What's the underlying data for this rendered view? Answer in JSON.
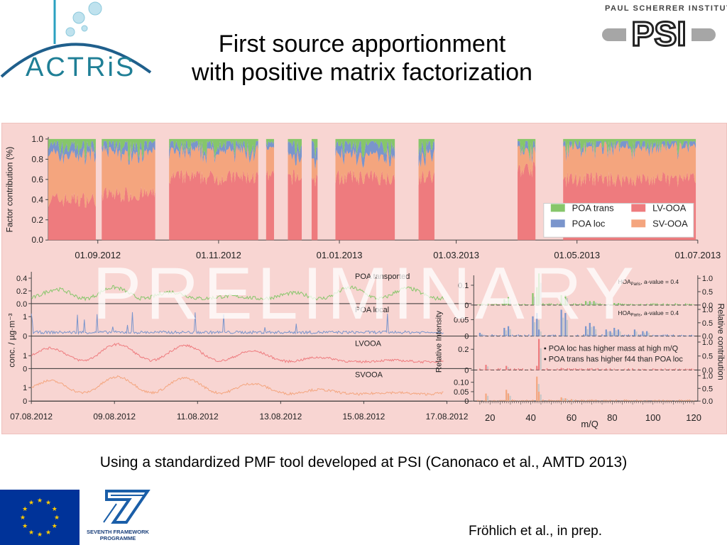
{
  "title": {
    "line1": "First source apportionment",
    "line2": "with positive matrix factorization"
  },
  "logos": {
    "actris": "ACTRiS",
    "psi_name": "PAUL SCHERRER INSTITUT",
    "psi_mark": "PSI",
    "fp7_label": "SEVENTH FRAMEWORK PROGRAMME",
    "eu_flag": "eu-flag-icon"
  },
  "watermark": "PRELIMINARY",
  "caption": "Using a standardized PMF tool developed at PSI (Canonaco et al., AMTD 2013)",
  "citation": "Fröhlich et al., in prep.",
  "colors": {
    "poa_trans": "#86c66a",
    "poa_loc": "#7a95cc",
    "lv_ooa": "#ee7b7e",
    "sv_ooa": "#f4a57e",
    "panel_bg": "#f8d5d2"
  },
  "chart_data": [
    {
      "type": "area",
      "ylabel": "Factor contribution (%)",
      "ylim": [
        0,
        1
      ],
      "yticks": [
        "0.0",
        "0.2",
        "0.4",
        "0.6",
        "0.8",
        "1.0"
      ],
      "x_ticks": [
        "01.09.2012",
        "01.11.2012",
        "01.01.2013",
        "01.03.2013",
        "01.05.2013",
        "01.07.2013"
      ],
      "legend_placement": "bottom-right",
      "legend": [
        "POA trans",
        "POA loc",
        "LV-OOA",
        "SV-OOA"
      ],
      "series_order": [
        "LV-OOA",
        "SV-OOA",
        "POA loc",
        "POA trans"
      ],
      "blocks": [
        {
          "from": "2012-08-07",
          "to": "2012-08-31",
          "lv": 0.4,
          "sv": 0.45,
          "loc": 0.08,
          "trans": 0.07
        },
        {
          "from": "2012-09-03",
          "to": "2012-09-30",
          "lv": 0.45,
          "sv": 0.42,
          "loc": 0.07,
          "trans": 0.06
        },
        {
          "from": "2012-10-07",
          "to": "2012-11-21",
          "lv": 0.62,
          "sv": 0.26,
          "loc": 0.06,
          "trans": 0.06
        },
        {
          "from": "2012-11-25",
          "to": "2012-11-29",
          "lv": 0.62,
          "sv": 0.26,
          "loc": 0.06,
          "trans": 0.06
        },
        {
          "from": "2012-12-06",
          "to": "2012-12-13",
          "lv": 0.62,
          "sv": 0.2,
          "loc": 0.12,
          "trans": 0.06
        },
        {
          "from": "2012-12-18",
          "to": "2012-12-21",
          "lv": 0.6,
          "sv": 0.2,
          "loc": 0.14,
          "trans": 0.06
        },
        {
          "from": "2012-12-30",
          "to": "2013-01-29",
          "lv": 0.62,
          "sv": 0.22,
          "loc": 0.1,
          "trans": 0.06
        },
        {
          "from": "2013-02-10",
          "to": "2013-02-18",
          "lv": 0.62,
          "sv": 0.22,
          "loc": 0.1,
          "trans": 0.06
        },
        {
          "from": "2013-04-01",
          "to": "2013-04-10",
          "lv": 0.7,
          "sv": 0.2,
          "loc": 0.05,
          "trans": 0.05
        },
        {
          "from": "2013-04-24",
          "to": "2013-06-30",
          "lv": 0.6,
          "sv": 0.32,
          "loc": 0.04,
          "trans": 0.04
        }
      ]
    },
    {
      "type": "line",
      "ylabel": "conc. / µg·m⁻³",
      "x_ticks": [
        "07.08.2012",
        "09.08.2012",
        "11.08.2012",
        "13.08.2012",
        "15.08.2012",
        "17.08.2012"
      ],
      "series": [
        {
          "name": "POA tansported",
          "color": "#86c66a",
          "ylim": [
            0,
            0.5
          ],
          "yticks": [
            "0.0",
            "0.2",
            "0.4"
          ],
          "shape": "waves",
          "base": 0.08,
          "amp": 0.18
        },
        {
          "name": "POA local",
          "color": "#7a95cc",
          "ylim": [
            0,
            1.6
          ],
          "yticks": [
            "0",
            "1"
          ],
          "shape": "spikes",
          "base": 0.12,
          "amp": 1.2
        },
        {
          "name": "LVOOA",
          "color": "#ee7b7e",
          "ylim": [
            0,
            2.3
          ],
          "yticks": [
            "0",
            "1"
          ],
          "shape": "hump",
          "base": 0.5,
          "amp": 1.4
        },
        {
          "name": "SVOOA",
          "color": "#f4a57e",
          "ylim": [
            0,
            2.3
          ],
          "yticks": [
            "0",
            "1"
          ],
          "shape": "hump",
          "base": 0.5,
          "amp": 1.3
        }
      ]
    },
    {
      "type": "bar",
      "ylabel": "Relative Intensity",
      "y2label": "Relative contribution",
      "xlabel": "m/Q",
      "xlim": [
        12,
        122
      ],
      "x_ticks": [
        20,
        40,
        60,
        80,
        100,
        120
      ],
      "right_ticks": [
        "0.0",
        "0.5",
        "1.0"
      ],
      "panels": [
        {
          "color": "#86c66a",
          "ylim": [
            0,
            0.15
          ],
          "yticks": [
            "0",
            "0.1"
          ],
          "label": "HOA",
          "label_sub": "Paris",
          "label_tail": ", a-value = 0.4",
          "peaks": [
            [
              27,
              0.03
            ],
            [
              29,
              0.04
            ],
            [
              41,
              0.06
            ],
            [
              43,
              0.09
            ],
            [
              44,
              0.16
            ],
            [
              55,
              0.05
            ],
            [
              57,
              0.05
            ],
            [
              67,
              0.02
            ],
            [
              69,
              0.02
            ],
            [
              71,
              0.02
            ],
            [
              81,
              0.01
            ],
            [
              83,
              0.01
            ]
          ]
        },
        {
          "color": "#7a95cc",
          "ylim": [
            0,
            0.09
          ],
          "yticks": [
            "0",
            "0.05"
          ],
          "label": "HOA",
          "label_sub": "Paris",
          "label_tail": ", a-value = 0.4",
          "peaks": [
            [
              15,
              0.01
            ],
            [
              27,
              0.025
            ],
            [
              29,
              0.03
            ],
            [
              41,
              0.06
            ],
            [
              43,
              0.07
            ],
            [
              44,
              0.02
            ],
            [
              55,
              0.08
            ],
            [
              57,
              0.07
            ],
            [
              67,
              0.03
            ],
            [
              69,
              0.04
            ],
            [
              71,
              0.03
            ],
            [
              77,
              0.02
            ],
            [
              79,
              0.015
            ],
            [
              81,
              0.025
            ],
            [
              83,
              0.02
            ],
            [
              91,
              0.02
            ],
            [
              95,
              0.015
            ],
            [
              97,
              0.015
            ]
          ]
        },
        {
          "color": "#ee7b7e",
          "ylim": [
            0,
            0.3
          ],
          "yticks": [
            "0",
            "0.2"
          ],
          "label": "",
          "peaks": [
            [
              18,
              0.05
            ],
            [
              28,
              0.04
            ],
            [
              44,
              0.3
            ],
            [
              43,
              0.04
            ],
            [
              55,
              0.02
            ],
            [
              60,
              0.01
            ]
          ]
        },
        {
          "color": "#f4a57e",
          "ylim": [
            0,
            0.15
          ],
          "yticks": [
            "0",
            "0.05",
            "0.10"
          ],
          "label": "",
          "peaks": [
            [
              18,
              0.04
            ],
            [
              28,
              0.06
            ],
            [
              29,
              0.04
            ],
            [
              43,
              0.13
            ],
            [
              44,
              0.05
            ],
            [
              55,
              0.02
            ],
            [
              57,
              0.015
            ],
            [
              60,
              0.01
            ]
          ]
        }
      ],
      "notes": [
        "• POA loc has higher mass at high m/Q",
        "• POA trans has higher f44 than POA loc"
      ]
    }
  ]
}
